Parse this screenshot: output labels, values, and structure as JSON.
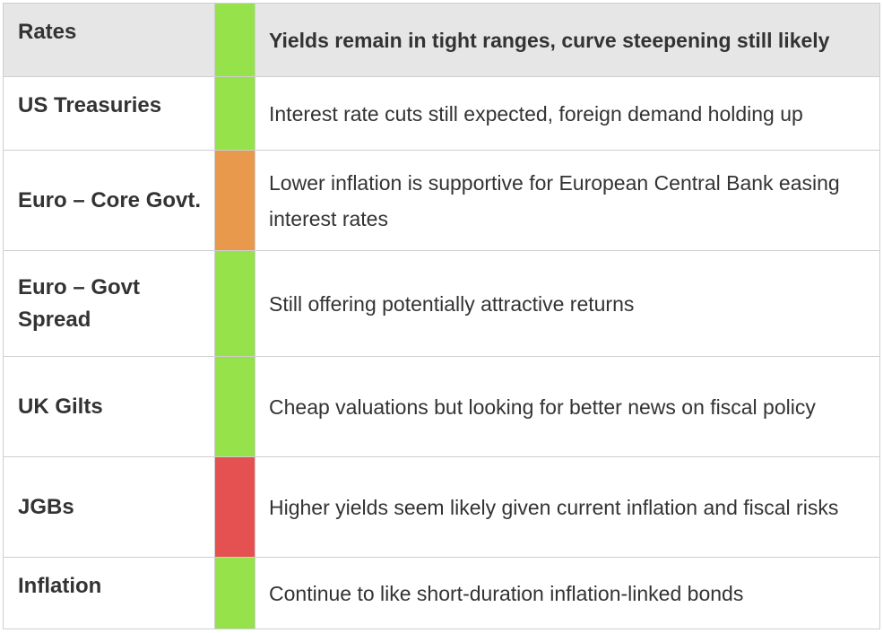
{
  "header": {
    "asset": "Rates",
    "signal_color": "#95e24a",
    "comment": "Yields remain in tight ranges, curve steepening still likely"
  },
  "rows": [
    {
      "asset": "US Treasuries",
      "signal_color": "#95e24a",
      "comment": "Interest rate cuts still expected, foreign demand holding up"
    },
    {
      "asset": "Euro – Core Govt.",
      "signal_color": "#e8994b",
      "comment": "Lower inflation is supportive for European Central Bank easing interest rates"
    },
    {
      "asset": "Euro – Govt Spread",
      "signal_color": "#95e24a",
      "comment": "Still offering potentially attractive returns"
    },
    {
      "asset": "UK Gilts",
      "signal_color": "#95e24a",
      "comment": "Cheap valuations but looking for better news on fiscal policy"
    },
    {
      "asset": "JGBs",
      "signal_color": "#e55050",
      "comment": "Higher yields seem likely given current inflation and fiscal risks"
    },
    {
      "asset": "Inflation",
      "signal_color": "#95e24a",
      "comment": "Continue to like short-duration inflation-linked bonds"
    }
  ]
}
